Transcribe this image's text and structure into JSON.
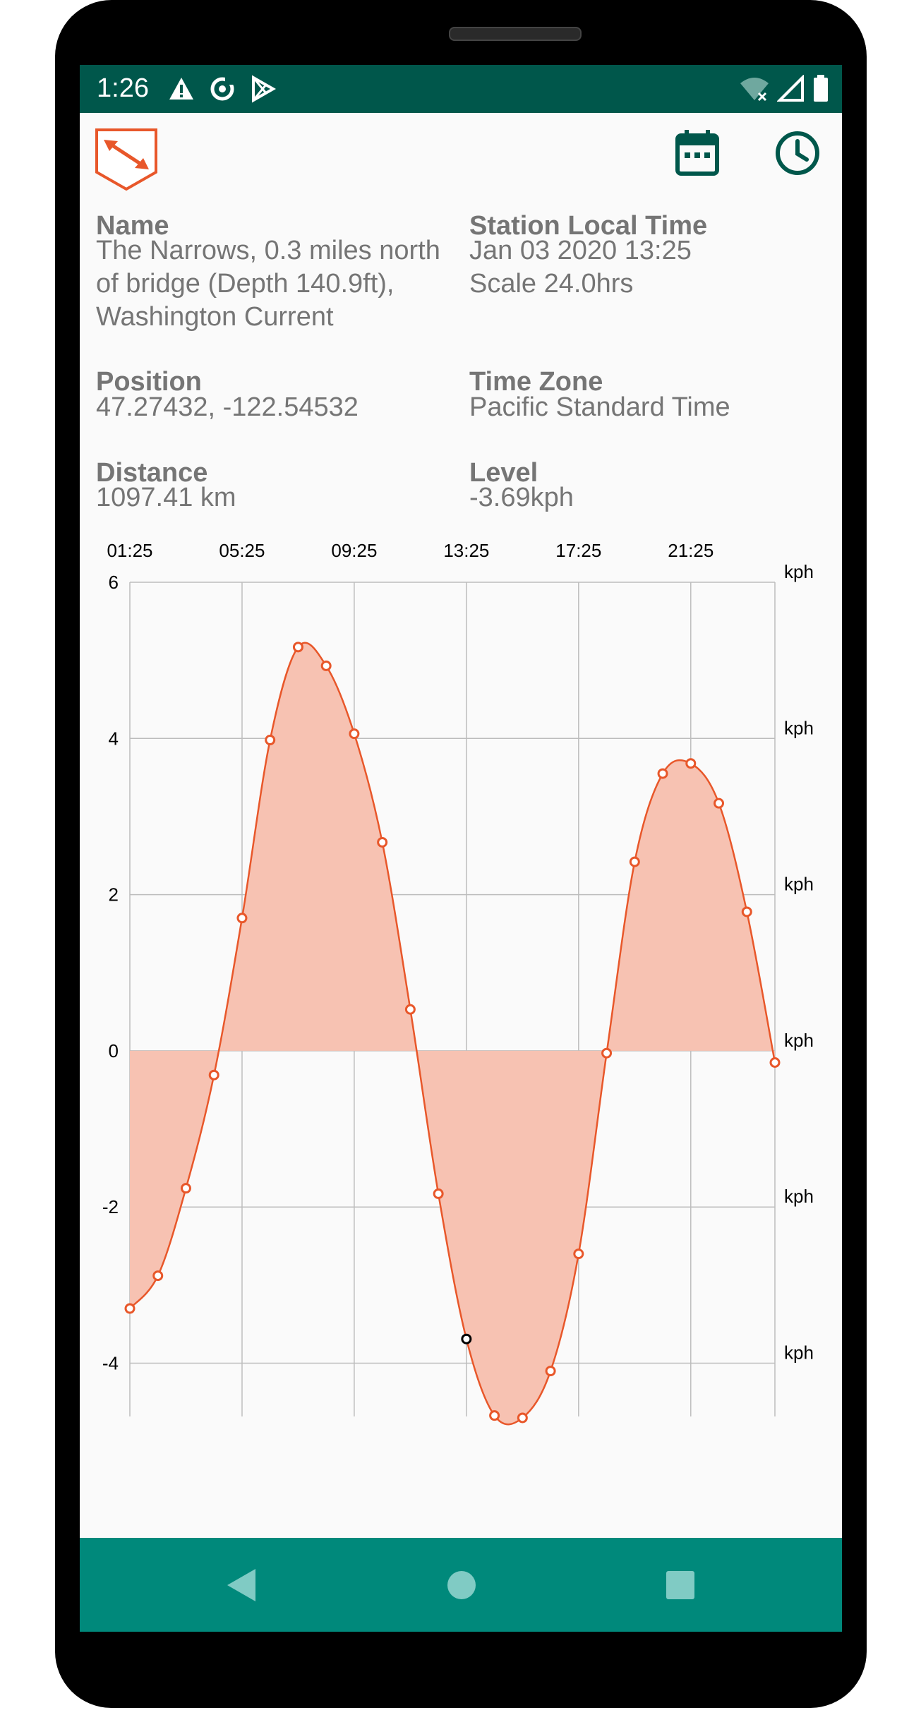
{
  "status_bar": {
    "time": "1:26",
    "left_icons": [
      "warning-icon",
      "sync-icon",
      "play-store-icon"
    ],
    "right_icons": [
      "wifi-off-icon",
      "signal-icon",
      "battery-icon"
    ]
  },
  "toolbar": {
    "app_icon": "tide-station-icon",
    "date_button_icon": "calendar-icon",
    "time_button_icon": "clock-icon"
  },
  "info": {
    "name_label": "Name",
    "name_line1": "The Narrows, 0.3 miles north",
    "name_line2": "of bridge (Depth 140.9ft),",
    "name_line3": "Washington Current",
    "local_time_label": "Station Local Time",
    "local_time_value": "Jan 03 2020 13:25",
    "scale_value": "Scale 24.0hrs",
    "position_label": "Position",
    "position_value": "47.27432, -122.54532",
    "timezone_label": "Time Zone",
    "timezone_value": "Pacific Standard Time",
    "distance_label": "Distance",
    "distance_value": "1097.41 km",
    "level_label": "Level",
    "level_value": "-3.69kph"
  },
  "chart_data": {
    "type": "area",
    "title": "",
    "x_tick_labels": [
      "01:25",
      "05:25",
      "09:25",
      "13:25",
      "17:25",
      "21:25"
    ],
    "x_range_hours": [
      0,
      23
    ],
    "ylim": [
      -5.7,
      6
    ],
    "y_ticks": [
      6,
      4,
      2,
      0,
      -2,
      -4
    ],
    "y_unit_label": "kph",
    "series": [
      {
        "x_hours": [
          0,
          1,
          2,
          3,
          4,
          5,
          6,
          7,
          8,
          9,
          10,
          11,
          12,
          13,
          14,
          15,
          16,
          17,
          18,
          19,
          20,
          21,
          22,
          23
        ],
        "values": [
          -3.3,
          -2.88,
          -1.76,
          -0.31,
          1.7,
          3.98,
          5.17,
          4.93,
          4.06,
          2.67,
          0.53,
          -1.83,
          -3.69,
          -4.67,
          -4.7,
          -4.1,
          -2.6,
          -0.03,
          2.42,
          3.55,
          3.68,
          3.17,
          1.78,
          -0.15
        ]
      }
    ],
    "current_point": {
      "x_hours": 12,
      "value": -3.69
    },
    "colors": {
      "line": "#e8572a",
      "fill": "#f7c2b2",
      "current": "#000000",
      "grid": "#bdbdbd"
    }
  },
  "colors": {
    "status_bar": "#00574b",
    "nav_bar": "#00897b",
    "accent": "#e8572a",
    "toolbar_icon": "#00574b"
  },
  "nav_bar": {
    "back_icon": "back-triangle-icon",
    "home_icon": "home-circle-icon",
    "recents_icon": "recents-square-icon"
  }
}
